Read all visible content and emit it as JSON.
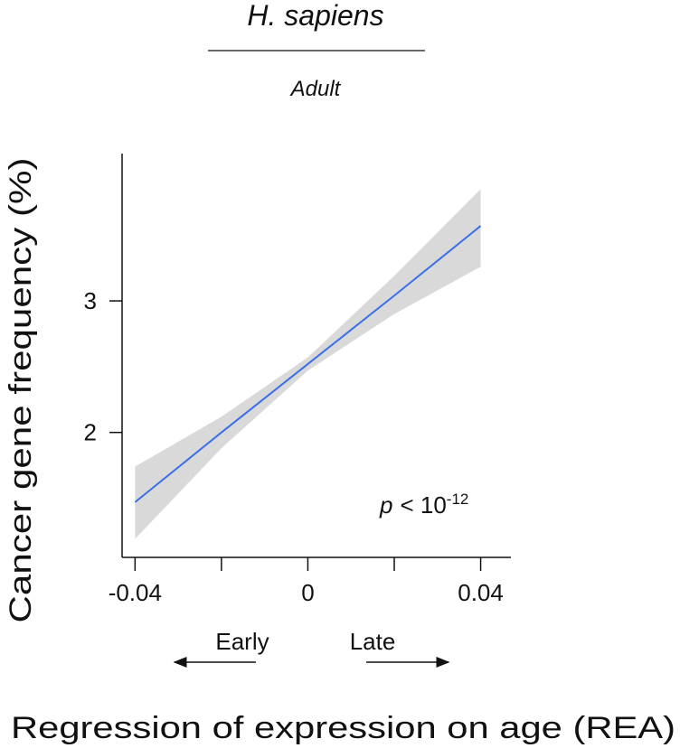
{
  "chart_data": {
    "type": "line",
    "title": "H. sapiens",
    "subtitle": "Adult",
    "y_label": "Cancer gene frequency (%)",
    "x_label": "Regression of expression on age (REA)",
    "direction_labels": [
      "Early",
      "Late"
    ],
    "annotation": {
      "italic": "p",
      "text": "< 10",
      "superscript": "-12"
    },
    "x": [
      -0.04,
      -0.02,
      0,
      0.02,
      0.04
    ],
    "series": [
      {
        "color": "#3a6fe8",
        "values": [
          1.47,
          2.0,
          2.52,
          3.04,
          3.57
        ]
      }
    ],
    "band": {
      "color": "#d9d9d9",
      "lower": [
        1.19,
        1.88,
        2.47,
        2.9,
        3.26
      ],
      "upper": [
        1.74,
        2.12,
        2.57,
        3.19,
        3.85
      ]
    },
    "xlim": [
      -0.043,
      0.047
    ],
    "ylim": [
      1.05,
      4.12
    ],
    "xticks": [
      -0.04,
      0,
      0.04
    ],
    "xminor_ticks": [
      -0.02,
      0.02
    ],
    "yticks": [
      2,
      3
    ]
  }
}
